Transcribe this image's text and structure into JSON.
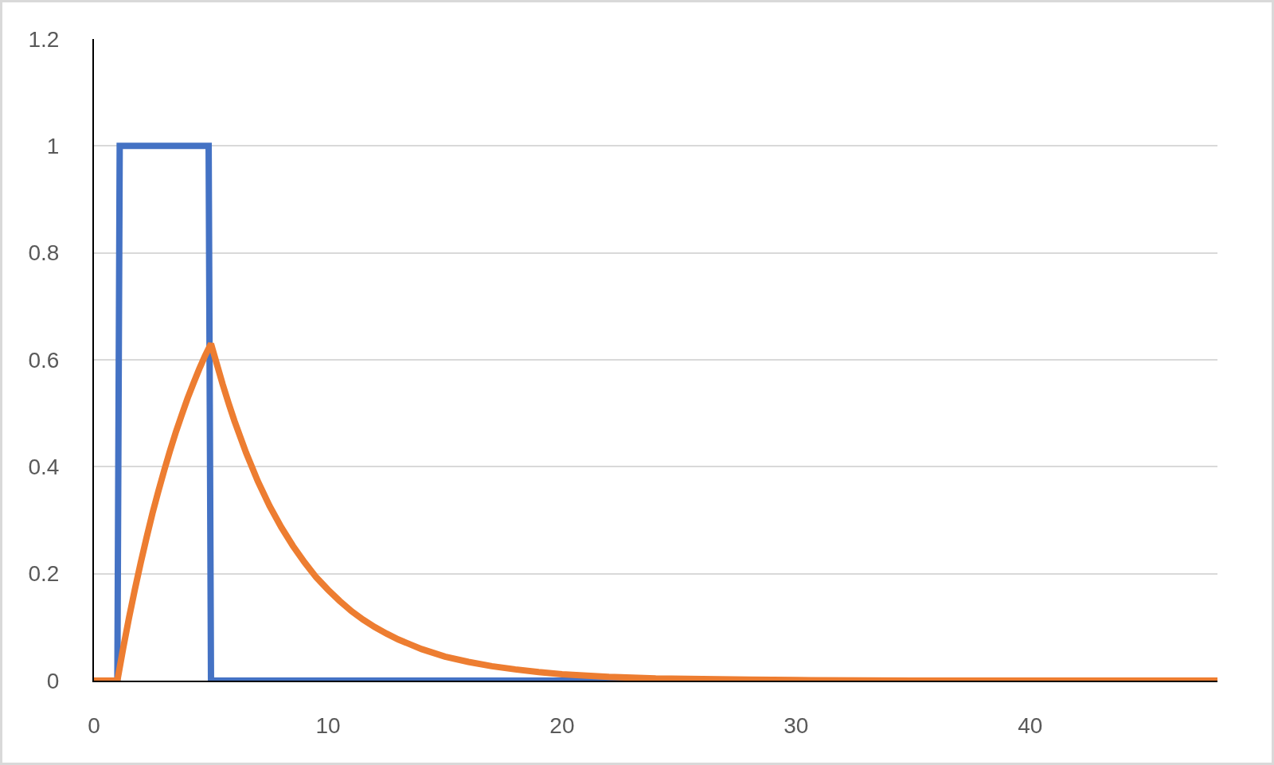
{
  "chart_data": {
    "type": "line",
    "series": [
      {
        "color": "#4472c4",
        "x": [
          1,
          1.1,
          4.9,
          5,
          48
        ],
        "values": [
          0,
          1,
          1,
          0,
          0
        ]
      },
      {
        "color": "#ed7d31",
        "x": [
          0,
          1,
          1.25,
          1.5,
          1.75,
          2,
          2.25,
          2.5,
          2.75,
          3,
          3.25,
          3.5,
          3.75,
          4,
          4.25,
          4.5,
          4.75,
          5,
          5.25,
          5.5,
          5.75,
          6,
          6.5,
          7,
          7.5,
          8,
          8.5,
          9,
          9.5,
          10,
          10.5,
          11,
          11.5,
          12,
          12.5,
          13,
          13.5,
          14,
          15,
          16,
          17,
          18,
          19,
          20,
          22,
          24,
          26,
          28,
          30,
          35,
          40,
          48
        ],
        "values": [
          0,
          0,
          0.061,
          0.118,
          0.171,
          0.221,
          0.268,
          0.313,
          0.354,
          0.393,
          0.43,
          0.465,
          0.497,
          0.528,
          0.556,
          0.583,
          0.608,
          0.63,
          0.592,
          0.554,
          0.519,
          0.486,
          0.426,
          0.373,
          0.327,
          0.287,
          0.252,
          0.221,
          0.193,
          0.17,
          0.149,
          0.13,
          0.114,
          0.1,
          0.088,
          0.077,
          0.068,
          0.059,
          0.045,
          0.035,
          0.027,
          0.021,
          0.016,
          0.012,
          0.007,
          0.004,
          0.003,
          0.002,
          0.001,
          0,
          0,
          0
        ]
      }
    ],
    "xlim": [
      0,
      48
    ],
    "xticks": [
      0,
      10,
      20,
      30,
      40
    ],
    "ylim": [
      0,
      1.2
    ],
    "yticks": [
      0,
      0.2,
      0.4,
      0.6,
      0.8,
      1,
      1.2
    ],
    "grid": "y",
    "marker": "none",
    "line_style": "solid"
  }
}
